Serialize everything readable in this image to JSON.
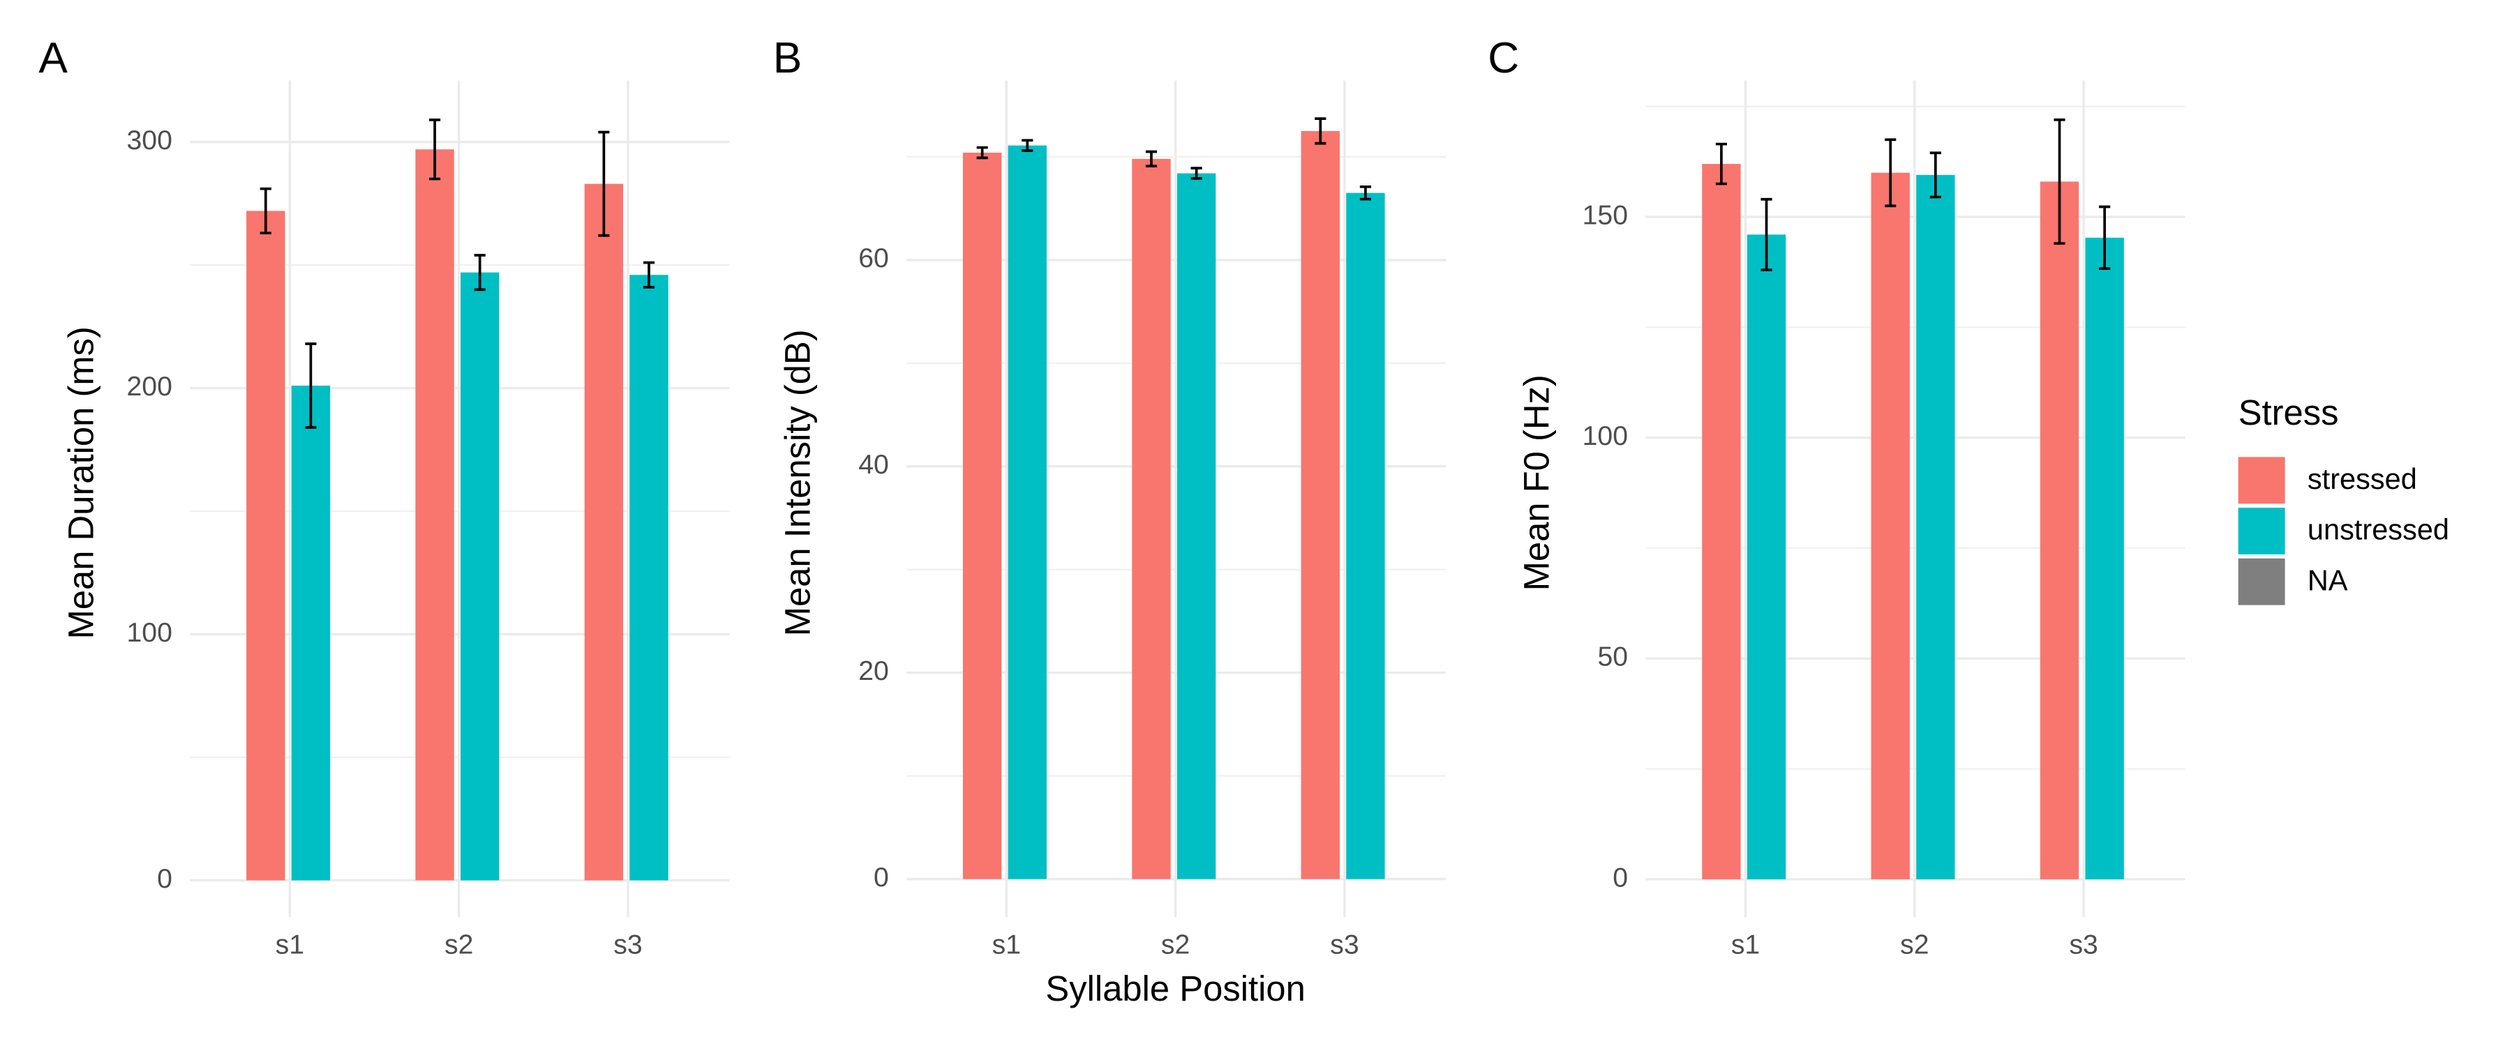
{
  "chart_data": [
    {
      "type": "bar",
      "label": "A",
      "y_label": "Mean Duration (ms)",
      "categories": [
        "s1",
        "s2",
        "s3"
      ],
      "series": [
        {
          "name": "stressed",
          "color": "#f8766d",
          "values": [
            272,
            297,
            283
          ],
          "errors": [
            9,
            12,
            21
          ]
        },
        {
          "name": "unstressed",
          "color": "#00bfc4",
          "values": [
            201,
            247,
            246
          ],
          "errors": [
            17,
            7,
            5
          ]
        }
      ],
      "ylim": [
        -15,
        325
      ],
      "yticks": [
        0,
        100,
        200,
        300
      ],
      "yminor": [
        50,
        150,
        250
      ],
      "grid": true
    },
    {
      "type": "bar",
      "label": "B",
      "y_label": "Mean Intensity (dB)",
      "categories": [
        "s1",
        "s2",
        "s3"
      ],
      "series": [
        {
          "name": "stressed",
          "color": "#f8766d",
          "values": [
            70.4,
            69.8,
            72.5
          ],
          "errors": [
            0.5,
            0.7,
            1.2
          ]
        },
        {
          "name": "unstressed",
          "color": "#00bfc4",
          "values": [
            71.1,
            68.4,
            66.5
          ],
          "errors": [
            0.5,
            0.5,
            0.6
          ]
        }
      ],
      "ylim": [
        -3.7,
        77.4
      ],
      "yticks": [
        0,
        20,
        40,
        60
      ],
      "yminor": [
        10,
        30,
        50,
        70
      ],
      "grid": true
    },
    {
      "type": "bar",
      "label": "C",
      "y_label": "Mean F0 (Hz)",
      "categories": [
        "s1",
        "s2",
        "s3"
      ],
      "series": [
        {
          "name": "stressed",
          "color": "#f8766d",
          "values": [
            162,
            160,
            158
          ],
          "errors": [
            4.5,
            7.5,
            14
          ]
        },
        {
          "name": "unstressed",
          "color": "#00bfc4",
          "values": [
            146,
            159.5,
            145.3
          ],
          "errors": [
            8,
            5,
            7
          ]
        }
      ],
      "ylim": [
        -8.6,
        180.9
      ],
      "yticks": [
        0,
        50,
        100,
        150
      ],
      "yminor": [
        25,
        75,
        125,
        175
      ],
      "grid": true
    }
  ],
  "shared": {
    "x_label": "Syllable Position",
    "legend": {
      "title": "Stress",
      "items": [
        {
          "name": "stressed",
          "color": "#f8766d"
        },
        {
          "name": "unstressed",
          "color": "#00bfc4"
        },
        {
          "name": "NA",
          "color": "#7f7f7f"
        }
      ]
    }
  }
}
